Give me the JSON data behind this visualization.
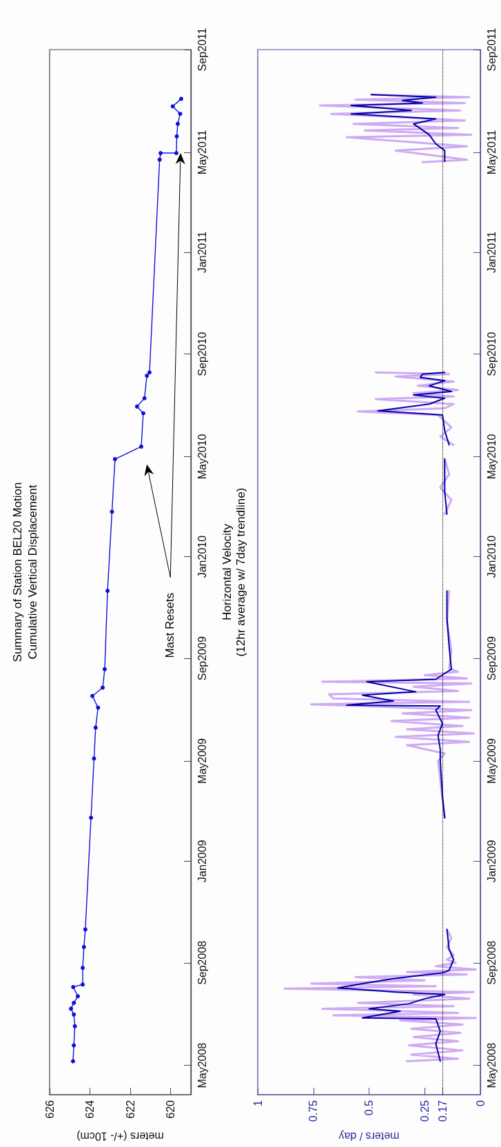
{
  "chart_data": [
    {
      "type": "line",
      "orientation": "horizontal",
      "title": "Summary of Station BEL20 Motion",
      "subtitle": "Cumulative Vertical Displacement",
      "xlabel": "meters (+/- 10cm)",
      "ylim": [
        "2008-03-27",
        "2011-09-01"
      ],
      "yticks": [
        {
          "value": "2008-05-01",
          "label": "May2008"
        },
        {
          "value": "2008-09-01",
          "label": "Sep2008"
        },
        {
          "value": "2009-01-01",
          "label": "Jan2009"
        },
        {
          "value": "2009-05-01",
          "label": "May2009"
        },
        {
          "value": "2009-09-01",
          "label": "Sep2009"
        },
        {
          "value": "2010-01-01",
          "label": "Jan2010"
        },
        {
          "value": "2010-05-01",
          "label": "May2010"
        },
        {
          "value": "2010-09-01",
          "label": "Sep2010"
        },
        {
          "value": "2011-01-01",
          "label": "Jan2011"
        },
        {
          "value": "2011-05-01",
          "label": "May2011"
        },
        {
          "value": "2011-09-01",
          "label": "Sep2011"
        }
      ],
      "xlim": [
        626,
        619
      ],
      "xticks": [
        626,
        624,
        622,
        620
      ],
      "grid": false,
      "marker": "circle",
      "annotations": [
        "Mast Resets"
      ],
      "series": [
        {
          "color": "#1010d8",
          "x": [
            "2008-05-06",
            "2008-05-25",
            "2008-06-17",
            "2008-07-01",
            "2008-07-08",
            "2008-07-15",
            "2008-07-23",
            "2008-08-03",
            "2008-08-06",
            "2008-08-26",
            "2008-09-20",
            "2008-10-11",
            "2009-02-22",
            "2009-05-04",
            "2009-06-10",
            "2009-07-04",
            "2009-07-18",
            "2009-07-28",
            "2009-08-19",
            "2009-11-21",
            "2010-02-24",
            "2010-04-28",
            "2010-05-13",
            "2010-06-22",
            "2010-06-30",
            "2010-07-10",
            "2010-08-06",
            "2010-08-10",
            "2011-04-22",
            "2011-04-30",
            "2011-04-30",
            "2011-05-20",
            "2011-06-04",
            "2011-06-16",
            "2011-06-25",
            "2011-07-04"
          ],
          "values": [
            624.84,
            624.8,
            624.75,
            624.8,
            624.94,
            624.8,
            624.6,
            624.83,
            624.36,
            624.36,
            624.3,
            624.23,
            623.95,
            623.8,
            623.72,
            623.6,
            623.88,
            623.37,
            623.27,
            623.13,
            622.91,
            622.76,
            621.46,
            621.36,
            621.67,
            621.3,
            621.18,
            621.05,
            620.55,
            620.5,
            619.72,
            619.7,
            619.65,
            619.53,
            619.9,
            619.48
          ]
        }
      ]
    },
    {
      "type": "line",
      "orientation": "horizontal",
      "title": "Horizontal Velocity",
      "subtitle": "(12hr average w/ 7day trendline)",
      "xlabel": "meters / day",
      "ylim": [
        "2008-03-27",
        "2011-09-01"
      ],
      "yticks": [
        {
          "value": "2008-05-01",
          "label": "May2008"
        },
        {
          "value": "2008-09-01",
          "label": "Sep2008"
        },
        {
          "value": "2009-01-01",
          "label": "Jan2009"
        },
        {
          "value": "2009-05-01",
          "label": "May2009"
        },
        {
          "value": "2009-09-01",
          "label": "Sep2009"
        },
        {
          "value": "2010-01-01",
          "label": "Jan2010"
        },
        {
          "value": "2010-05-01",
          "label": "May2010"
        },
        {
          "value": "2010-09-01",
          "label": "Sep2010"
        },
        {
          "value": "2011-01-01",
          "label": "Jan2011"
        },
        {
          "value": "2011-05-01",
          "label": "May2011"
        },
        {
          "value": "2011-09-01",
          "label": "Sep2011"
        }
      ],
      "xlim": [
        1,
        0
      ],
      "xticks": [
        1,
        0.75,
        0.5,
        0.25,
        0.17,
        0
      ],
      "grid": false,
      "ref_lines": [
        {
          "axis": "x",
          "value": 0.17,
          "color": "#000000",
          "line_style": "dotted"
        }
      ],
      "series": [
        {
          "color": "#cfaaf2",
          "x": [
            "2008-05-06",
            "2008-05-09",
            "2008-05-14",
            "2008-05-19",
            "2008-05-25",
            "2008-05-30",
            "2008-06-04",
            "2008-06-09",
            "2008-06-14",
            "2008-06-19",
            "2008-06-24",
            "2008-06-27",
            "2008-06-30",
            "2008-07-03",
            "2008-07-08",
            "2008-07-11",
            "2008-07-15",
            "2008-07-20",
            "2008-07-25",
            "2008-07-28",
            "2008-08-01",
            "2008-08-04",
            "2008-08-07",
            "2008-08-11",
            "2008-08-15",
            "2008-08-18",
            "2008-08-21",
            "2008-08-24",
            "2008-08-28",
            "2008-09-01",
            "2008-09-05",
            "2008-09-10",
            "2008-09-20",
            "2008-10-01",
            "2008-10-11",
            "2008-12-01",
            "2009-02-22",
            "2009-03-15",
            "2009-04-10",
            "2009-05-01",
            "2009-05-10",
            "2009-05-20",
            "2009-05-24",
            "2009-05-30",
            "2009-06-03",
            "2009-06-08",
            "2009-06-12",
            "2009-06-18",
            "2009-06-22",
            "2009-06-27",
            "2009-07-01",
            "2009-07-05",
            "2009-07-08",
            "2009-07-11",
            "2009-07-15",
            "2009-07-20",
            "2009-07-24",
            "2009-07-29",
            "2009-08-02",
            "2009-08-04",
            "2009-08-08",
            "2009-08-12",
            "2009-08-16",
            "2009-08-20",
            "2009-09-10",
            "2009-10-15",
            "2009-11-21",
            "2010-01-05",
            "2010-02-21",
            "2010-03-10",
            "2010-03-25",
            "2010-04-10",
            "2010-04-28",
            "2010-05-06",
            "2010-05-15",
            "2010-05-25",
            "2010-06-05",
            "2010-06-20",
            "2010-06-24",
            "2010-06-28",
            "2010-07-03",
            "2010-07-09",
            "2010-07-12",
            "2010-07-16",
            "2010-07-20",
            "2010-07-25",
            "2010-07-30",
            "2010-08-05",
            "2010-08-08",
            "2010-08-10",
            "2010-12-01",
            "2011-04-19",
            "2011-04-22",
            "2011-05-03",
            "2011-05-08",
            "2011-05-19",
            "2011-05-22",
            "2011-05-27",
            "2011-05-30",
            "2011-06-04",
            "2011-06-08",
            "2011-06-16",
            "2011-06-20",
            "2011-06-26",
            "2011-06-29",
            "2011-07-03",
            "2011-07-06",
            "2011-07-09"
          ],
          "values": [
            0.33,
            0.1,
            0.31,
            0.08,
            0.32,
            0.1,
            0.3,
            0.09,
            0.31,
            0.08,
            0.36,
            0.02,
            0.66,
            0.1,
            0.71,
            0.12,
            0.55,
            0.05,
            0.3,
            0.03,
            0.88,
            0.2,
            0.76,
            0.25,
            0.56,
            0.06,
            0.33,
            0.02,
            0.2,
            0.11,
            0.15,
            0.12,
            0.15,
            0.13,
            0.15,
            null,
            0.16,
            0.17,
            0.18,
            0.19,
            0.16,
            0.33,
            0.05,
            0.38,
            0.03,
            0.33,
            0.08,
            0.4,
            0.05,
            0.35,
            0.04,
            0.42,
            0.76,
            0.05,
            0.66,
            0.68,
            0.1,
            0.3,
            0.04,
            0.71,
            0.06,
            0.25,
            0.1,
            0.14,
            0.13,
            0.15,
            0.14,
            null,
            0.16,
            0.13,
            0.18,
            0.14,
            0.16,
            null,
            0.12,
            0.18,
            0.13,
            0.19,
            0.55,
            0.16,
            0.12,
            0.47,
            0.12,
            0.3,
            0.1,
            0.28,
            0.12,
            0.38,
            0.14,
            0.47,
            null,
            0.26,
            0.06,
            0.38,
            0.06,
            0.6,
            0.04,
            0.52,
            0.1,
            0.57,
            0.07,
            0.67,
            0.09,
            0.72,
            0.07,
            0.56,
            0.05,
            0.49
          ]
        },
        {
          "color": "#0000a8",
          "x": [
            "2008-05-06",
            "2008-05-27",
            "2008-06-11",
            "2008-06-26",
            "2008-06-27",
            "2008-07-05",
            "2008-07-08",
            "2008-07-14",
            "2008-07-20",
            "2008-07-25",
            "2008-07-28",
            "2008-08-02",
            "2008-08-07",
            "2008-08-13",
            "2008-08-20",
            "2008-08-23",
            "2008-09-05",
            "2008-09-17",
            "2008-10-11",
            "2008-12-01",
            "2009-02-22",
            "2009-03-20",
            "2009-05-01",
            "2009-05-15",
            "2009-06-01",
            "2009-06-15",
            "2009-07-01",
            "2009-07-06",
            "2009-07-07",
            "2009-07-12",
            "2009-07-19",
            "2009-07-23",
            "2009-08-04",
            "2009-08-07",
            "2009-08-14",
            "2009-08-19",
            "2009-09-15",
            "2009-10-20",
            "2009-11-21",
            "2010-01-05",
            "2010-02-21",
            "2010-03-20",
            "2010-04-28",
            "2010-05-06",
            "2010-05-15",
            "2010-06-01",
            "2010-06-20",
            "2010-06-25",
            "2010-07-03",
            "2010-07-10",
            "2010-07-14",
            "2010-07-18",
            "2010-07-25",
            "2010-07-31",
            "2010-08-04",
            "2010-08-08",
            "2010-08-10",
            "2010-12-01",
            "2011-04-20",
            "2011-05-03",
            "2011-05-11",
            "2011-05-22",
            "2011-06-04",
            "2011-06-10",
            "2011-06-16",
            "2011-06-20",
            "2011-06-26",
            "2011-06-29",
            "2011-07-02",
            "2011-07-06",
            "2011-07-09"
          ],
          "values": [
            0.18,
            0.2,
            0.18,
            0.2,
            0.53,
            0.36,
            0.5,
            0.32,
            0.25,
            0.16,
            0.38,
            0.64,
            0.53,
            0.39,
            0.17,
            0.14,
            0.12,
            0.14,
            0.15,
            null,
            0.16,
            0.17,
            0.18,
            0.18,
            0.19,
            0.17,
            0.2,
            0.18,
            0.6,
            0.39,
            0.53,
            0.29,
            0.51,
            0.2,
            0.16,
            0.13,
            0.14,
            0.15,
            0.15,
            null,
            0.15,
            0.16,
            0.16,
            null,
            0.14,
            0.16,
            0.17,
            0.46,
            0.23,
            0.16,
            0.3,
            0.13,
            0.23,
            0.16,
            0.27,
            0.26,
            0.16,
            null,
            0.16,
            0.16,
            0.2,
            0.23,
            0.3,
            0.2,
            0.58,
            0.31,
            0.58,
            0.26,
            0.35,
            0.2,
            0.49
          ]
        }
      ]
    }
  ]
}
